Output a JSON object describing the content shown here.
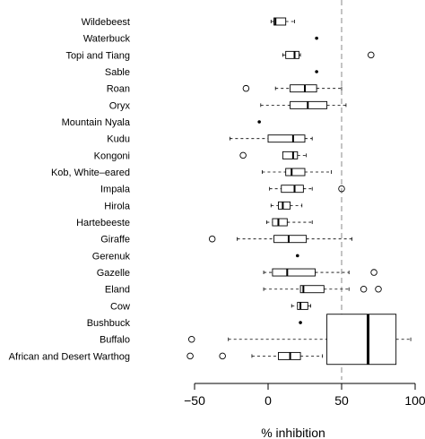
{
  "chart_data": {
    "type": "boxplot",
    "orientation": "horizontal",
    "xlabel": "% inhibition",
    "xlim": [
      -60,
      100
    ],
    "xticks": [
      -50,
      0,
      50,
      100
    ],
    "reference_line": {
      "x": 50,
      "style": "dashed",
      "color": "#b0b0b0"
    },
    "categories": [
      "Wildebeest",
      "Waterbuck",
      "Topi and Tiang",
      "Sable",
      "Roan",
      "Oryx",
      "Mountain Nyala",
      "Kudu",
      "Kongoni",
      "Kob, White–eared",
      "Impala",
      "Hirola",
      "Hartebeeste",
      "Giraffe",
      "Gerenuk",
      "Gazelle",
      "Eland",
      "Cow",
      "Bushbuck",
      "Buffalo",
      "African and Desert Warthog"
    ],
    "boxes": [
      {
        "whisker_low": 2,
        "q1": 4,
        "median": 5,
        "q3": 12,
        "whisker_high": 18,
        "outliers": []
      },
      {
        "whisker_low": 33,
        "q1": 33,
        "median": 33,
        "q3": 33,
        "whisker_high": 33,
        "outliers": []
      },
      {
        "whisker_low": 10,
        "q1": 12,
        "median": 18,
        "q3": 21,
        "whisker_high": 22,
        "outliers": [
          70
        ]
      },
      {
        "whisker_low": 33,
        "q1": 33,
        "median": 33,
        "q3": 33,
        "whisker_high": 33,
        "outliers": []
      },
      {
        "whisker_low": 5,
        "q1": 15,
        "median": 25,
        "q3": 33,
        "whisker_high": 50,
        "outliers": [
          -15
        ]
      },
      {
        "whisker_low": -5,
        "q1": 15,
        "median": 27,
        "q3": 40,
        "whisker_high": 53,
        "outliers": []
      },
      {
        "whisker_low": -6,
        "q1": -6,
        "median": -6,
        "q3": -6,
        "whisker_high": -6,
        "outliers": []
      },
      {
        "whisker_low": -26,
        "q1": 0,
        "median": 17,
        "q3": 25,
        "whisker_high": 30,
        "outliers": []
      },
      {
        "whisker_low": 10,
        "q1": 10,
        "median": 17,
        "q3": 20,
        "whisker_high": 26,
        "outliers": [
          -17
        ]
      },
      {
        "whisker_low": -4,
        "q1": 12,
        "median": 16,
        "q3": 25,
        "whisker_high": 43,
        "outliers": []
      },
      {
        "whisker_low": 1,
        "q1": 9,
        "median": 18,
        "q3": 24,
        "whisker_high": 30,
        "outliers": [
          50
        ]
      },
      {
        "whisker_low": 2,
        "q1": 7,
        "median": 10,
        "q3": 15,
        "whisker_high": 23,
        "outliers": []
      },
      {
        "whisker_low": -1,
        "q1": 3,
        "median": 7,
        "q3": 13,
        "whisker_high": 30,
        "outliers": []
      },
      {
        "whisker_low": -21,
        "q1": 4,
        "median": 14,
        "q3": 26,
        "whisker_high": 57,
        "outliers": [
          -38
        ]
      },
      {
        "whisker_low": 20,
        "q1": 20,
        "median": 20,
        "q3": 20,
        "whisker_high": 20,
        "outliers": []
      },
      {
        "whisker_low": -3,
        "q1": 3,
        "median": 13,
        "q3": 32,
        "whisker_high": 55,
        "outliers": [
          72
        ]
      },
      {
        "whisker_low": -3,
        "q1": 22,
        "median": 24,
        "q3": 38,
        "whisker_high": 55,
        "outliers": [
          65,
          75
        ]
      },
      {
        "whisker_low": 16,
        "q1": 20,
        "median": 22,
        "q3": 27,
        "whisker_high": 29,
        "outliers": []
      },
      {
        "whisker_low": 22,
        "q1": 22,
        "median": 22,
        "q3": 22,
        "whisker_high": 22,
        "outliers": []
      },
      {
        "whisker_low": -27,
        "q1": 40,
        "median": 68,
        "q3": 87,
        "whisker_high": 97,
        "outliers": [
          -52
        ]
      },
      {
        "whisker_low": -11,
        "q1": 7,
        "median": 15,
        "q3": 22,
        "whisker_high": 37,
        "outliers": [
          -53,
          -31
        ]
      }
    ]
  }
}
